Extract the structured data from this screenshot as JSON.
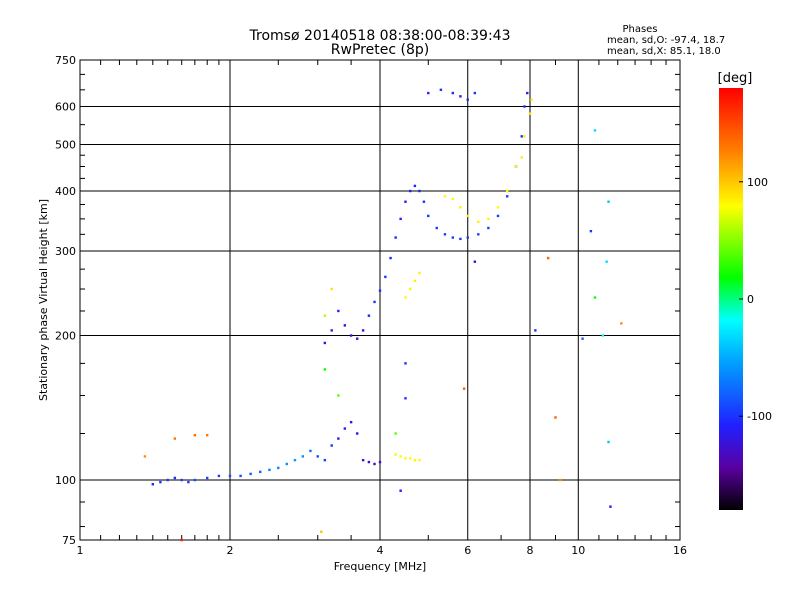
{
  "title": "Tromsø 20140518 08:38:00-08:39:43",
  "subtitle": "RwPretec (8p)",
  "stats": {
    "heading": "Phases",
    "line1": "mean, sd,O: -97.4, 18.7",
    "line2": "mean, sd,X:  85.1, 18.0"
  },
  "colorbar": {
    "label": "[deg]",
    "range": [
      -180,
      180
    ],
    "ticks": [
      {
        "value": 100,
        "label": "100"
      },
      {
        "value": 0,
        "label": "0"
      },
      {
        "value": -100,
        "label": "-100"
      }
    ]
  },
  "chart_data": {
    "type": "scatter",
    "title": "Tromsø 20140518 08:38:00-08:39:43",
    "subtitle": "RwPretec (8p)",
    "xlabel": "Frequency [MHz]",
    "ylabel": "Stationary phase Virtual Height [km]",
    "xscale": "log",
    "yscale": "log",
    "xlim": [
      1,
      16
    ],
    "ylim": [
      75,
      750
    ],
    "xticks": [
      {
        "value": 1,
        "label": "1"
      },
      {
        "value": 2,
        "label": "2"
      },
      {
        "value": 4,
        "label": "4"
      },
      {
        "value": 6,
        "label": "6"
      },
      {
        "value": 8,
        "label": "8"
      },
      {
        "value": 10,
        "label": "10"
      },
      {
        "value": 16,
        "label": "16"
      }
    ],
    "yticks": [
      {
        "value": 75,
        "label": "75"
      },
      {
        "value": 100,
        "label": "100"
      },
      {
        "value": 200,
        "label": "200"
      },
      {
        "value": 300,
        "label": "300"
      },
      {
        "value": 400,
        "label": "400"
      },
      {
        "value": 500,
        "label": "500"
      },
      {
        "value": 600,
        "label": "600"
      },
      {
        "value": 750,
        "label": "750"
      }
    ],
    "grid": true,
    "color_encoding": "phase [deg]",
    "series": [
      {
        "values": [
          [
            1.4,
            98,
            -105
          ],
          [
            1.45,
            99,
            -100
          ],
          [
            1.5,
            100,
            -98
          ],
          [
            1.55,
            101,
            -102
          ],
          [
            1.6,
            100,
            -95
          ],
          [
            1.65,
            99,
            -100
          ],
          [
            1.7,
            100,
            -90
          ],
          [
            1.8,
            101,
            -92
          ],
          [
            1.9,
            102,
            -95
          ],
          [
            2.0,
            102,
            -88
          ],
          [
            2.1,
            102,
            -90
          ],
          [
            2.2,
            103,
            -85
          ],
          [
            2.3,
            104,
            -80
          ],
          [
            2.4,
            105,
            -70
          ],
          [
            2.5,
            106,
            -65
          ],
          [
            2.6,
            108,
            -60
          ],
          [
            2.7,
            110,
            -55
          ],
          [
            2.8,
            112,
            -60
          ],
          [
            2.9,
            115,
            -75
          ],
          [
            3.0,
            112,
            -90
          ],
          [
            3.1,
            110,
            -95
          ],
          [
            3.2,
            118,
            -100
          ],
          [
            3.3,
            122,
            -110
          ],
          [
            3.4,
            128,
            -115
          ],
          [
            3.5,
            132,
            -118
          ],
          [
            3.6,
            125,
            -120
          ],
          [
            3.7,
            110,
            -125
          ],
          [
            3.8,
            109,
            -128
          ],
          [
            3.9,
            108,
            -130
          ],
          [
            4.0,
            109,
            -130
          ]
        ]
      },
      {
        "values": [
          [
            4.3,
            113,
            75
          ],
          [
            4.4,
            112,
            78
          ],
          [
            4.5,
            111,
            80
          ],
          [
            4.6,
            111,
            80
          ],
          [
            4.7,
            110,
            82
          ],
          [
            4.8,
            110,
            80
          ]
        ]
      },
      {
        "values": [
          [
            3.1,
            193,
            -120
          ],
          [
            3.2,
            205,
            -115
          ],
          [
            3.3,
            225,
            -110
          ],
          [
            3.4,
            210,
            -125
          ],
          [
            3.5,
            200,
            -130
          ],
          [
            3.6,
            197,
            -125
          ],
          [
            3.7,
            205,
            -115
          ],
          [
            3.8,
            220,
            -105
          ],
          [
            3.9,
            235,
            -100
          ],
          [
            4.0,
            248,
            -100
          ],
          [
            4.1,
            265,
            -100
          ],
          [
            4.2,
            290,
            -105
          ],
          [
            4.3,
            320,
            -105
          ],
          [
            4.4,
            350,
            -108
          ],
          [
            4.5,
            380,
            -110
          ],
          [
            4.6,
            400,
            -110
          ],
          [
            4.7,
            410,
            -108
          ],
          [
            4.8,
            400,
            -105
          ],
          [
            4.9,
            380,
            -100
          ],
          [
            5.0,
            355,
            -100
          ],
          [
            5.2,
            335,
            -98
          ],
          [
            5.4,
            325,
            -96
          ],
          [
            5.6,
            320,
            -95
          ],
          [
            5.8,
            318,
            -95
          ],
          [
            6.0,
            320,
            -95
          ],
          [
            6.3,
            325,
            -95
          ],
          [
            6.6,
            335,
            -95
          ],
          [
            6.9,
            355,
            -95
          ],
          [
            7.2,
            390,
            -95
          ],
          [
            7.5,
            450,
            -100
          ],
          [
            7.7,
            520,
            -100
          ],
          [
            7.8,
            600,
            -105
          ],
          [
            7.9,
            640,
            -110
          ]
        ]
      },
      {
        "values": [
          [
            4.5,
            240,
            80
          ],
          [
            4.6,
            250,
            82
          ],
          [
            4.7,
            260,
            85
          ],
          [
            4.8,
            270,
            85
          ],
          [
            5.4,
            390,
            80
          ],
          [
            5.6,
            385,
            82
          ],
          [
            5.8,
            370,
            85
          ],
          [
            6.0,
            355,
            85
          ],
          [
            6.3,
            345,
            85
          ],
          [
            6.6,
            350,
            82
          ],
          [
            6.9,
            370,
            80
          ],
          [
            7.2,
            400,
            80
          ],
          [
            7.5,
            450,
            82
          ],
          [
            7.8,
            520,
            85
          ],
          [
            8.0,
            580,
            88
          ],
          [
            8.05,
            620,
            90
          ],
          [
            7.7,
            470,
            85
          ]
        ]
      },
      {
        "values": [
          [
            5.6,
            640,
            -105
          ],
          [
            5.8,
            630,
            -110
          ],
          [
            6.0,
            620,
            -105
          ],
          [
            6.2,
            640,
            -100
          ],
          [
            5.3,
            650,
            -100
          ],
          [
            5.0,
            640,
            -110
          ]
        ]
      },
      {
        "values": [
          [
            1.55,
            122,
            130
          ],
          [
            1.7,
            124,
            135
          ],
          [
            1.8,
            124,
            130
          ],
          [
            1.35,
            112,
            120
          ],
          [
            3.1,
            170,
            20
          ],
          [
            3.1,
            220,
            60
          ],
          [
            3.2,
            250,
            90
          ],
          [
            3.3,
            150,
            40
          ],
          [
            3.05,
            78,
            100
          ],
          [
            4.3,
            125,
            40
          ],
          [
            4.5,
            175,
            -100
          ],
          [
            4.5,
            148,
            -100
          ],
          [
            4.4,
            95,
            -110
          ],
          [
            5.9,
            155,
            140
          ],
          [
            6.2,
            285,
            -120
          ],
          [
            8.2,
            205,
            -100
          ],
          [
            8.7,
            290,
            140
          ],
          [
            9.0,
            135,
            140
          ],
          [
            9.2,
            100,
            120
          ],
          [
            10.2,
            197,
            -80
          ],
          [
            10.6,
            330,
            -100
          ],
          [
            10.8,
            535,
            -30
          ],
          [
            10.8,
            240,
            20
          ],
          [
            11.5,
            380,
            -40
          ],
          [
            11.5,
            120,
            -40
          ],
          [
            11.6,
            88,
            -110
          ],
          [
            11.4,
            285,
            -30
          ],
          [
            12.2,
            212,
            120
          ],
          [
            11.2,
            200,
            -20
          ],
          [
            1.6,
            75,
            170
          ]
        ]
      }
    ]
  }
}
